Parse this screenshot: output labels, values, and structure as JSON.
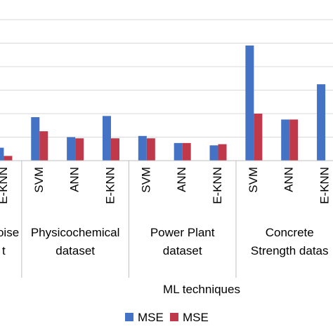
{
  "chart_data": {
    "type": "bar",
    "xlabel": "ML techniques",
    "ylim": [
      0,
      7
    ],
    "grid": true,
    "legend_placement": "bottom",
    "groups": [
      {
        "label": "Noise\nt",
        "categories": [
          "E-KNN"
        ]
      },
      {
        "label": "Physicochemical\ndataset",
        "categories": [
          "SVM",
          "ANN",
          "E-KNN"
        ]
      },
      {
        "label": "Power Plant\ndataset",
        "categories": [
          "SVM",
          "ANN",
          "E-KNN"
        ]
      },
      {
        "label": "Concrete\nStrength datas",
        "categories": [
          "SVM",
          "ANN",
          "E-KNN"
        ]
      }
    ],
    "categories": [
      "E-KNN",
      "SVM",
      "ANN",
      "E-KNN",
      "SVM",
      "ANN",
      "E-KNN",
      "SVM",
      "ANN",
      "E-KNN"
    ],
    "series": [
      {
        "name": "MSE",
        "color": "#4472C4",
        "values": [
          0.55,
          1.85,
          1.0,
          1.9,
          1.05,
          0.75,
          0.65,
          4.9,
          1.75,
          3.25
        ]
      },
      {
        "name": "MSE",
        "color": "#C0394B",
        "values": [
          0.2,
          1.25,
          0.95,
          0.95,
          0.95,
          0.75,
          0.7,
          2.0,
          1.75,
          null
        ]
      }
    ]
  }
}
